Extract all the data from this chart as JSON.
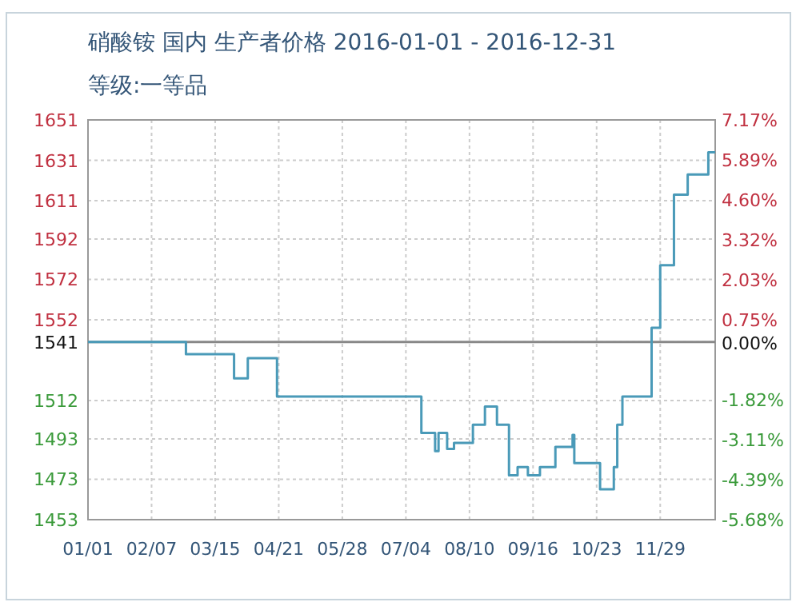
{
  "chart_data": {
    "type": "step",
    "title": "硝酸铵 国内 生产者价格 2016-01-01 - 2016-12-31",
    "subtitle": "等级:一等品",
    "x": [
      "2016-01-01",
      "2016-02-27",
      "2016-03-26",
      "2016-04-03",
      "2016-04-20",
      "2016-07-13",
      "2016-07-21",
      "2016-07-23",
      "2016-07-28",
      "2016-08-01",
      "2016-08-12",
      "2016-08-19",
      "2016-08-26",
      "2016-09-02",
      "2016-09-07",
      "2016-09-13",
      "2016-09-20",
      "2016-09-29",
      "2016-10-09",
      "2016-10-10",
      "2016-10-25",
      "2016-11-02",
      "2016-11-04",
      "2016-11-07",
      "2016-11-24",
      "2016-11-29",
      "2016-12-07",
      "2016-12-15",
      "2016-12-27",
      "2016-12-31"
    ],
    "series": [
      {
        "color": "#4a9ab8",
        "values": [
          1541,
          1535,
          1523,
          1533,
          1514,
          1496,
          1487,
          1496,
          1488,
          1491,
          1500,
          1509,
          1500,
          1475,
          1479,
          1475,
          1479,
          1489,
          1495,
          1481,
          1468,
          1479,
          1500,
          1514,
          1548,
          1579,
          1614,
          1624,
          1635,
          1635
        ]
      }
    ],
    "xlim": [
      "2016-01-01",
      "2016-12-31"
    ],
    "xticks": [
      {
        "value": "2016-01-01",
        "label": "01/01"
      },
      {
        "value": "2016-02-07",
        "label": "02/07"
      },
      {
        "value": "2016-03-15",
        "label": "03/15"
      },
      {
        "value": "2016-04-21",
        "label": "04/21"
      },
      {
        "value": "2016-05-28",
        "label": "05/28"
      },
      {
        "value": "2016-07-04",
        "label": "07/04"
      },
      {
        "value": "2016-08-10",
        "label": "08/10"
      },
      {
        "value": "2016-09-16",
        "label": "09/16"
      },
      {
        "value": "2016-10-23",
        "label": "10/23"
      },
      {
        "value": "2016-11-29",
        "label": "11/29"
      }
    ],
    "ylim": [
      1453,
      1651
    ],
    "yticks": [
      1453,
      1473,
      1493,
      1512,
      1541,
      1552,
      1572,
      1592,
      1611,
      1631,
      1651
    ],
    "y2lim": [
      -5.68,
      7.17
    ],
    "y2ticks": [
      {
        "value": -5.68,
        "label": "-5.68%"
      },
      {
        "value": -4.39,
        "label": "-4.39%"
      },
      {
        "value": -3.11,
        "label": "-3.11%"
      },
      {
        "value": -1.82,
        "label": "-1.82%"
      },
      {
        "value": 0,
        "label": "0.00%"
      },
      {
        "value": 0.75,
        "label": "0.75%"
      },
      {
        "value": 2.03,
        "label": "2.03%"
      },
      {
        "value": 3.32,
        "label": "3.32%"
      },
      {
        "value": 4.6,
        "label": "4.60%"
      },
      {
        "value": 5.89,
        "label": "5.89%"
      },
      {
        "value": 7.17,
        "label": "7.17%"
      }
    ],
    "ref_lines": [
      {
        "axis": "y",
        "value": 1541,
        "color": "#888888"
      }
    ],
    "grid": true,
    "marker": "none",
    "line_style": "solid"
  }
}
